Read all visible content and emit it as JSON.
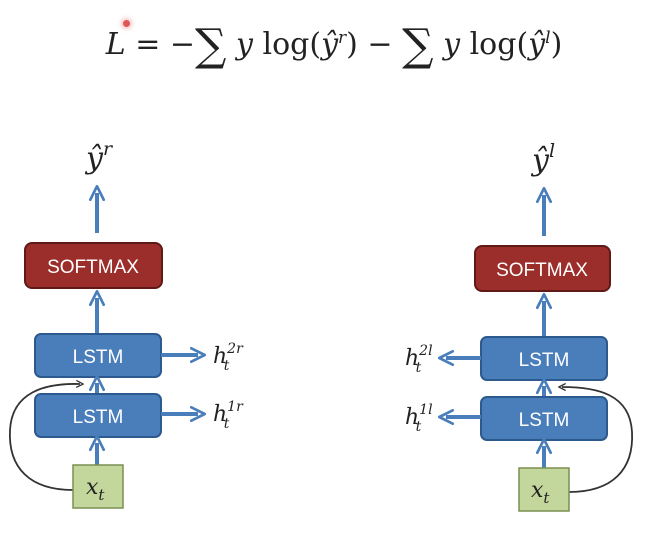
{
  "formula": {
    "lhs": "L",
    "equals": "=",
    "minus1": "−",
    "sum1": "∑",
    "term1_y": "y",
    "term1_log": "log",
    "term1_arg": "ŷ",
    "term1_sup": "r",
    "minus2": "−",
    "sum2": "∑",
    "term2_y": "y",
    "term2_log": "log",
    "term2_arg": "ŷ",
    "term2_sup": "l"
  },
  "left_branch": {
    "output": {
      "base": "ŷ",
      "sup": "r"
    },
    "softmax": "SOFTMAX",
    "lstm_top": "LSTM",
    "lstm_bottom": "LSTM",
    "hidden_top": {
      "base": "h",
      "sub": "t",
      "sup": "2r"
    },
    "hidden_bottom": {
      "base": "h",
      "sub": "t",
      "sup": "1r"
    },
    "input": {
      "base": "x",
      "sub": "t"
    }
  },
  "right_branch": {
    "output": {
      "base": "ŷ",
      "sup": "l"
    },
    "softmax": "SOFTMAX",
    "lstm_top": "LSTM",
    "lstm_bottom": "LSTM",
    "hidden_top": {
      "base": "h",
      "sub": "t",
      "sup": "2l"
    },
    "hidden_bottom": {
      "base": "h",
      "sub": "t",
      "sup": "1l"
    },
    "input": {
      "base": "x",
      "sub": "t"
    }
  },
  "colors": {
    "lstm_fill": "#4a7ebb",
    "lstm_stroke": "#2d5a8e",
    "softmax_fill": "#9b2d2a",
    "softmax_stroke": "#5f1a18",
    "input_fill": "#c3d69b",
    "input_stroke": "#7a8f52",
    "arrow": "#4a7ebb",
    "loop": "#333333"
  }
}
